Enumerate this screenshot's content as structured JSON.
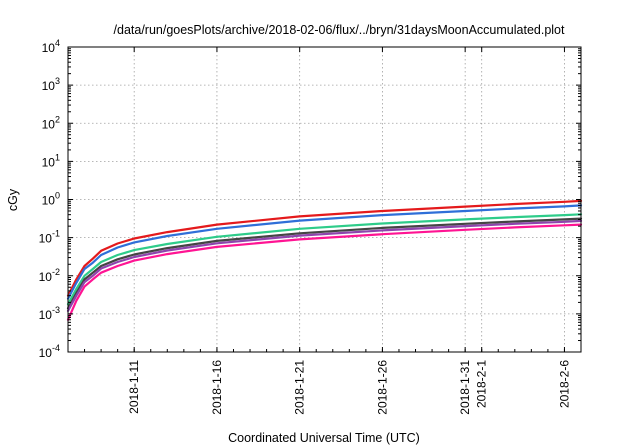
{
  "chart_data": {
    "type": "line",
    "title": "/data/run/goesPlots/archive/2018-02-06/flux/../bryn/31daysMoonAccumulated.plot",
    "xlabel": "Coordinated Universal Time (UTC)",
    "ylabel": "cGy",
    "yscale": "log",
    "ylim": [
      0.0001,
      10000
    ],
    "xlim": [
      "2018-01-07",
      "2018-02-07"
    ],
    "grid": true,
    "y_ticks": [
      {
        "value": 0.0001,
        "base": "10",
        "exp": "-4"
      },
      {
        "value": 0.001,
        "base": "10",
        "exp": "-3"
      },
      {
        "value": 0.01,
        "base": "10",
        "exp": "-2"
      },
      {
        "value": 0.1,
        "base": "10",
        "exp": "-1"
      },
      {
        "value": 1,
        "base": "10",
        "exp": "0"
      },
      {
        "value": 10,
        "base": "10",
        "exp": "1"
      },
      {
        "value": 100,
        "base": "10",
        "exp": "2"
      },
      {
        "value": 1000,
        "base": "10",
        "exp": "3"
      },
      {
        "value": 10000,
        "base": "10",
        "exp": "4"
      }
    ],
    "x_ticks": [
      {
        "date": "2018-01-11",
        "label": "2018-1-11"
      },
      {
        "date": "2018-01-16",
        "label": "2018-1-16"
      },
      {
        "date": "2018-01-21",
        "label": "2018-1-21"
      },
      {
        "date": "2018-01-26",
        "label": "2018-1-26"
      },
      {
        "date": "2018-01-31",
        "label": "2018-1-31"
      },
      {
        "date": "2018-02-01",
        "label": "2018-2-1"
      },
      {
        "date": "2018-02-06",
        "label": "2018-2-6"
      }
    ],
    "series": [
      {
        "color": "#e41a1c",
        "x": [
          "2018-01-07",
          "2018-01-07T12:00",
          "2018-01-08",
          "2018-01-08T12:00",
          "2018-01-09",
          "2018-01-10",
          "2018-01-11",
          "2018-01-13",
          "2018-01-16",
          "2018-01-21",
          "2018-01-26",
          "2018-01-31",
          "2018-02-03",
          "2018-02-06",
          "2018-02-07"
        ],
        "y": [
          0.003,
          0.008,
          0.018,
          0.028,
          0.045,
          0.07,
          0.095,
          0.14,
          0.22,
          0.36,
          0.5,
          0.65,
          0.76,
          0.87,
          0.92
        ]
      },
      {
        "color": "#2f6fd8",
        "x": [
          "2018-01-07",
          "2018-01-07T12:00",
          "2018-01-08",
          "2018-01-08T12:00",
          "2018-01-09",
          "2018-01-10",
          "2018-01-11",
          "2018-01-13",
          "2018-01-16",
          "2018-01-21",
          "2018-01-26",
          "2018-01-31",
          "2018-02-03",
          "2018-02-06",
          "2018-02-07"
        ],
        "y": [
          0.0025,
          0.0065,
          0.015,
          0.022,
          0.035,
          0.055,
          0.075,
          0.11,
          0.17,
          0.28,
          0.39,
          0.5,
          0.58,
          0.66,
          0.7
        ]
      },
      {
        "color": "#2ecc8a",
        "x": [
          "2018-01-07",
          "2018-01-07T12:00",
          "2018-01-08",
          "2018-01-08T12:00",
          "2018-01-09",
          "2018-01-10",
          "2018-01-11",
          "2018-01-13",
          "2018-01-16",
          "2018-01-21",
          "2018-01-26",
          "2018-01-31",
          "2018-02-03",
          "2018-02-06",
          "2018-02-07"
        ],
        "y": [
          0.0018,
          0.0045,
          0.01,
          0.015,
          0.023,
          0.035,
          0.047,
          0.068,
          0.105,
          0.17,
          0.235,
          0.3,
          0.345,
          0.39,
          0.41
        ]
      },
      {
        "color": "#444444",
        "x": [
          "2018-01-07",
          "2018-01-07T12:00",
          "2018-01-08",
          "2018-01-08T12:00",
          "2018-01-09",
          "2018-01-10",
          "2018-01-11",
          "2018-01-13",
          "2018-01-16",
          "2018-01-21",
          "2018-01-26",
          "2018-01-31",
          "2018-02-03",
          "2018-02-06",
          "2018-02-07"
        ],
        "y": [
          0.0014,
          0.0035,
          0.008,
          0.012,
          0.018,
          0.027,
          0.036,
          0.053,
          0.082,
          0.13,
          0.18,
          0.23,
          0.265,
          0.3,
          0.315
        ]
      },
      {
        "color": "#8e44ad",
        "x": [
          "2018-01-07",
          "2018-01-07T12:00",
          "2018-01-08",
          "2018-01-08T12:00",
          "2018-01-09",
          "2018-01-10",
          "2018-01-11",
          "2018-01-13",
          "2018-01-16",
          "2018-01-21",
          "2018-01-26",
          "2018-01-31",
          "2018-02-03",
          "2018-02-06",
          "2018-02-07"
        ],
        "y": [
          0.0012,
          0.003,
          0.0068,
          0.01,
          0.0155,
          0.023,
          0.031,
          0.046,
          0.071,
          0.113,
          0.155,
          0.2,
          0.23,
          0.26,
          0.275
        ]
      },
      {
        "color": "#ff1493",
        "x": [
          "2018-01-07",
          "2018-01-07T12:00",
          "2018-01-08",
          "2018-01-08T12:00",
          "2018-01-09",
          "2018-01-10",
          "2018-01-11",
          "2018-01-13",
          "2018-01-16",
          "2018-01-21",
          "2018-01-26",
          "2018-01-31",
          "2018-02-03",
          "2018-02-06",
          "2018-02-07"
        ],
        "y": [
          0.0007,
          0.0022,
          0.0052,
          0.008,
          0.012,
          0.018,
          0.025,
          0.037,
          0.057,
          0.09,
          0.123,
          0.16,
          0.185,
          0.21,
          0.22
        ]
      }
    ]
  }
}
